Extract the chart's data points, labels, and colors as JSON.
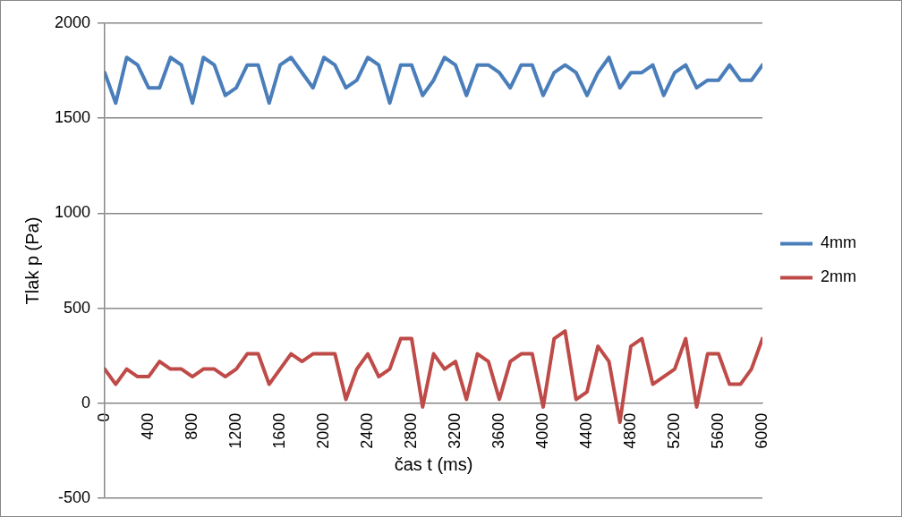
{
  "chart_data": {
    "type": "line",
    "xlabel": "čas t (ms)",
    "ylabel": "Tlak p (Pa)",
    "x": [
      0,
      100,
      200,
      300,
      400,
      500,
      600,
      700,
      800,
      900,
      1000,
      1100,
      1200,
      1300,
      1400,
      1500,
      1600,
      1700,
      1800,
      1900,
      2000,
      2100,
      2200,
      2300,
      2400,
      2500,
      2600,
      2700,
      2800,
      2900,
      3000,
      3100,
      3200,
      3300,
      3400,
      3500,
      3600,
      3700,
      3800,
      3900,
      4000,
      4100,
      4200,
      4300,
      4400,
      4500,
      4600,
      4700,
      4800,
      4900,
      5000,
      5100,
      5200,
      5300,
      5400,
      5500,
      5600,
      5700,
      5800,
      5900,
      6000
    ],
    "series": [
      {
        "name": "4mm",
        "color": "#4a7ebb",
        "values": [
          1740,
          1580,
          1820,
          1780,
          1660,
          1660,
          1820,
          1780,
          1580,
          1820,
          1780,
          1620,
          1660,
          1780,
          1780,
          1580,
          1780,
          1820,
          1740,
          1660,
          1820,
          1780,
          1660,
          1700,
          1820,
          1780,
          1580,
          1780,
          1780,
          1620,
          1700,
          1820,
          1780,
          1620,
          1780,
          1780,
          1740,
          1660,
          1780,
          1780,
          1620,
          1740,
          1780,
          1740,
          1620,
          1740,
          1820,
          1660,
          1740,
          1740,
          1780,
          1620,
          1740,
          1780,
          1660,
          1700,
          1700,
          1780,
          1700,
          1700,
          1780
        ]
      },
      {
        "name": "2mm",
        "color": "#be4b48",
        "values": [
          180,
          100,
          180,
          140,
          140,
          220,
          180,
          180,
          140,
          180,
          180,
          140,
          180,
          260,
          260,
          100,
          180,
          260,
          220,
          260,
          260,
          260,
          20,
          180,
          260,
          140,
          180,
          340,
          340,
          -20,
          260,
          180,
          220,
          20,
          260,
          220,
          20,
          220,
          260,
          260,
          -20,
          340,
          380,
          20,
          60,
          300,
          220,
          -100,
          300,
          340,
          100,
          140,
          180,
          340,
          -20,
          260,
          260,
          100,
          100,
          180,
          340
        ]
      }
    ],
    "xlim": [
      0,
      6000
    ],
    "xticks": [
      0,
      400,
      800,
      1200,
      1600,
      2000,
      2400,
      2800,
      3200,
      3600,
      4000,
      4400,
      4800,
      5200,
      5600,
      6000
    ],
    "ylim": [
      -500,
      2000
    ],
    "yticks": [
      -500,
      0,
      500,
      1000,
      1500,
      2000
    ],
    "grid": "y",
    "legend": "right",
    "marker": "none",
    "line_style": "solid"
  }
}
